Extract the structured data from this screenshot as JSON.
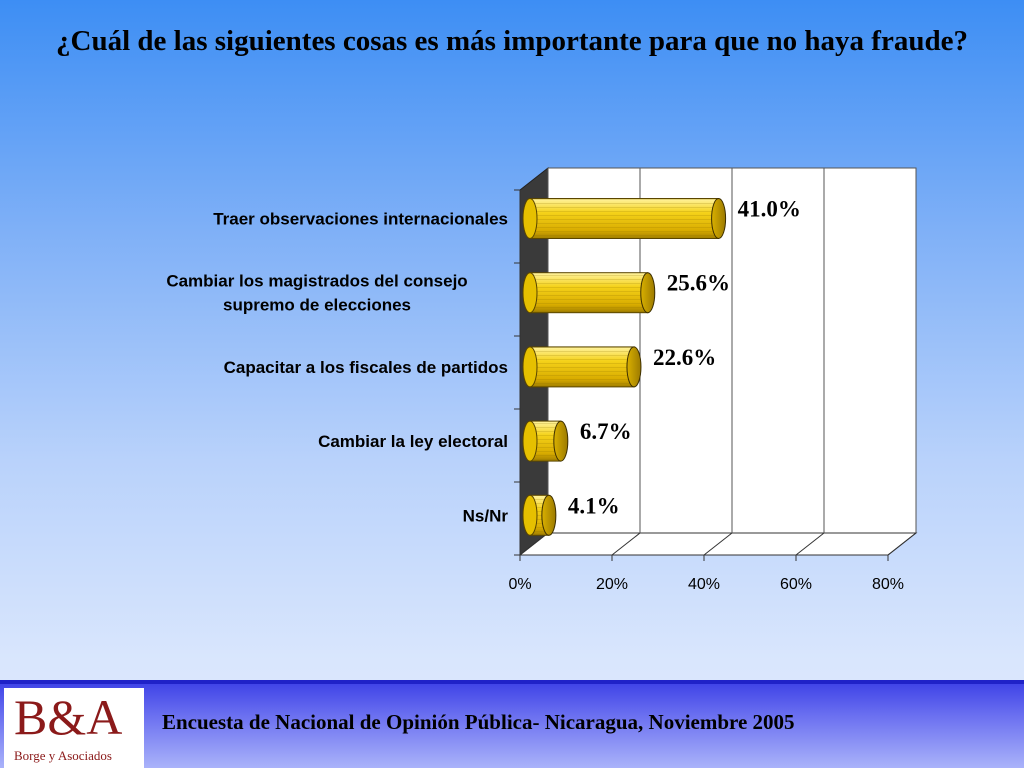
{
  "title": "¿Cuál de las siguientes cosas es más importante para que no haya fraude?",
  "chart_data": {
    "type": "bar",
    "orientation": "horizontal",
    "categories": [
      [
        "Traer observaciones internacionales"
      ],
      [
        "Cambiar los magistrados del consejo",
        "supremo de elecciones"
      ],
      [
        "Capacitar a los fiscales de partidos"
      ],
      [
        "Cambiar la ley electoral"
      ],
      [
        "Ns/Nr"
      ]
    ],
    "values": [
      41.0,
      25.6,
      22.6,
      6.7,
      4.1
    ],
    "value_labels": [
      "41.0%",
      "25.6%",
      "22.6%",
      "6.7%",
      "4.1%"
    ],
    "xlim": [
      0,
      80
    ],
    "x_ticks": [
      "0%",
      "20%",
      "40%",
      "60%",
      "80%"
    ],
    "grid": true,
    "bar_color": "#f0c808",
    "wall_color": "#3a3a3a"
  },
  "footer": {
    "logo": "B&A",
    "logo_subtitle": "Borge y Asociados",
    "text": "Encuesta de Nacional de Opinión Pública- Nicaragua, Noviembre 2005"
  }
}
